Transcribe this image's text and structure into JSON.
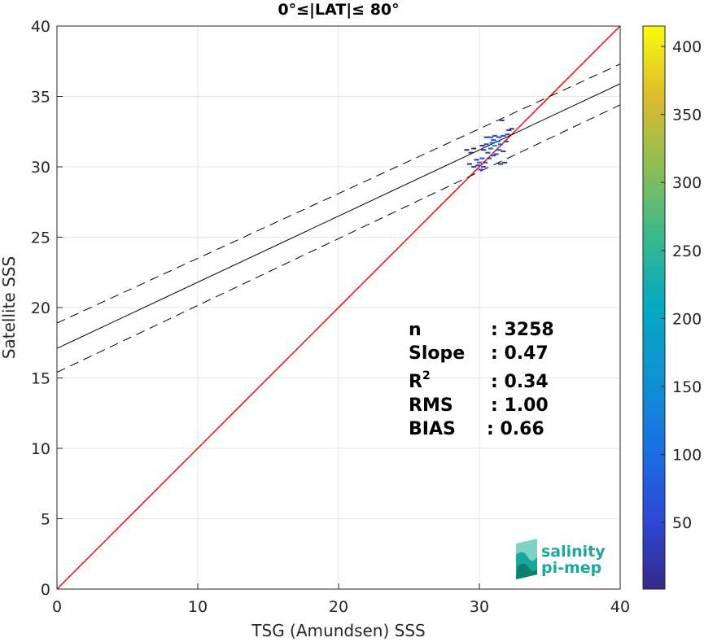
{
  "chart_data": {
    "type": "scatter",
    "title": "0°≤|LAT|≤ 80°",
    "xlabel": "TSG (Amundsen) SSS",
    "ylabel": "Satellite SSS",
    "xlim": [
      0,
      40
    ],
    "ylim": [
      0,
      40
    ],
    "x_ticks": [
      0,
      10,
      20,
      30,
      40
    ],
    "y_ticks": [
      0,
      5,
      10,
      15,
      20,
      25,
      30,
      35,
      40
    ],
    "grid": true,
    "lines": [
      {
        "kind": "identity",
        "color": "#ff0000",
        "style": "solid",
        "points": [
          [
            0,
            0
          ],
          [
            40,
            40
          ]
        ]
      },
      {
        "kind": "fit",
        "color": "#000000",
        "style": "solid",
        "points": [
          [
            0,
            17.1
          ],
          [
            40,
            35.9
          ]
        ]
      },
      {
        "kind": "fit-upper",
        "color": "#000000",
        "style": "dashed",
        "points": [
          [
            0,
            18.9
          ],
          [
            40,
            37.3
          ]
        ]
      },
      {
        "kind": "fit-lower",
        "color": "#000000",
        "style": "dashed",
        "points": [
          [
            0,
            15.4
          ],
          [
            40,
            34.4
          ]
        ]
      }
    ],
    "density_points": [
      {
        "x": 29.1,
        "y": 31.2,
        "c": 3
      },
      {
        "x": 29.4,
        "y": 31.0,
        "c": 5
      },
      {
        "x": 29.6,
        "y": 31.3,
        "c": 4
      },
      {
        "x": 29.3,
        "y": 30.2,
        "c": 20
      },
      {
        "x": 29.6,
        "y": 30.0,
        "c": 35
      },
      {
        "x": 29.9,
        "y": 30.1,
        "c": 30
      },
      {
        "x": 30.1,
        "y": 29.8,
        "c": 40
      },
      {
        "x": 30.3,
        "y": 30.0,
        "c": 45
      },
      {
        "x": 29.8,
        "y": 30.5,
        "c": 25
      },
      {
        "x": 30.0,
        "y": 30.3,
        "c": 60
      },
      {
        "x": 30.2,
        "y": 30.6,
        "c": 50
      },
      {
        "x": 30.4,
        "y": 30.3,
        "c": 55
      },
      {
        "x": 30.3,
        "y": 31.2,
        "c": 20
      },
      {
        "x": 30.6,
        "y": 31.0,
        "c": 40
      },
      {
        "x": 30.8,
        "y": 31.3,
        "c": 70
      },
      {
        "x": 30.5,
        "y": 31.6,
        "c": 35
      },
      {
        "x": 30.9,
        "y": 31.7,
        "c": 90
      },
      {
        "x": 31.1,
        "y": 31.5,
        "c": 150
      },
      {
        "x": 31.0,
        "y": 31.9,
        "c": 60
      },
      {
        "x": 31.3,
        "y": 31.8,
        "c": 110
      },
      {
        "x": 31.5,
        "y": 31.6,
        "c": 70
      },
      {
        "x": 30.5,
        "y": 32.1,
        "c": 30
      },
      {
        "x": 30.8,
        "y": 32.1,
        "c": 50
      },
      {
        "x": 31.1,
        "y": 32.2,
        "c": 60
      },
      {
        "x": 31.4,
        "y": 32.1,
        "c": 45
      },
      {
        "x": 31.7,
        "y": 32.2,
        "c": 40
      },
      {
        "x": 32.0,
        "y": 32.3,
        "c": 35
      },
      {
        "x": 31.2,
        "y": 30.9,
        "c": 80
      },
      {
        "x": 31.4,
        "y": 31.2,
        "c": 65
      },
      {
        "x": 31.7,
        "y": 31.1,
        "c": 30
      },
      {
        "x": 32.1,
        "y": 32.6,
        "c": 25
      },
      {
        "x": 32.3,
        "y": 32.7,
        "c": 20
      },
      {
        "x": 31.6,
        "y": 33.3,
        "c": 15
      },
      {
        "x": 31.8,
        "y": 30.3,
        "c": 20
      },
      {
        "x": 31.5,
        "y": 30.2,
        "c": 25
      },
      {
        "x": 30.7,
        "y": 30.6,
        "c": 35
      },
      {
        "x": 31.0,
        "y": 30.8,
        "c": 45
      },
      {
        "x": 30.2,
        "y": 31.5,
        "c": 15
      },
      {
        "x": 31.9,
        "y": 31.8,
        "c": 30
      }
    ],
    "colorbar": {
      "min": 1,
      "max": 415,
      "ticks": [
        "50",
        "100",
        "150",
        "200",
        "250",
        "300",
        "350",
        "400"
      ],
      "tick_values": [
        50,
        100,
        150,
        200,
        250,
        300,
        350,
        400
      ],
      "colormap": "parula"
    },
    "stats": {
      "n_label": "n",
      "n_value": ": 3258",
      "slope_label": "Slope",
      "slope_value": ": 0.47",
      "r2_label": "R",
      "r2_sup": "2",
      "r2_value": ": 0.34",
      "rms_label": "RMS",
      "rms_value": ": 1.00",
      "bias_label": "BIAS",
      "bias_value": ": 0.66"
    }
  },
  "logo": {
    "line1": "salinity",
    "line2": "pi-mep",
    "color": "#1aa89a"
  }
}
